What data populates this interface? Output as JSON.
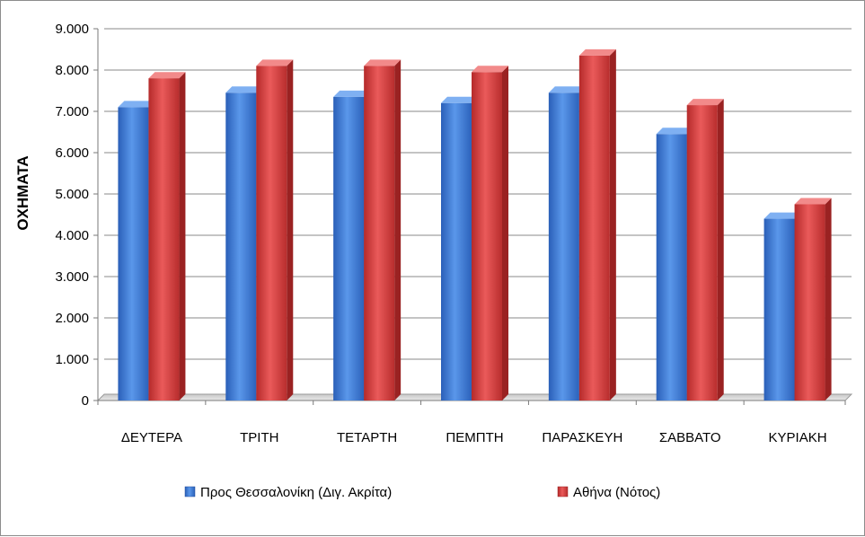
{
  "chart_data": {
    "type": "bar",
    "title": "",
    "xlabel": "",
    "ylabel": "ΟΧΗΜΑΤΑ",
    "ylim": [
      0,
      9000
    ],
    "yticks": [
      0,
      1000,
      2000,
      3000,
      4000,
      5000,
      6000,
      7000,
      8000,
      9000
    ],
    "ytick_labels": [
      "0",
      "1.000",
      "2.000",
      "3.000",
      "4.000",
      "5.000",
      "6.000",
      "7.000",
      "8.000",
      "9.000"
    ],
    "grid": true,
    "legend_position": "bottom",
    "categories": [
      "ΔΕΥΤΕΡΑ",
      "ΤΡΙΤΗ",
      "ΤΕΤΑΡΤΗ",
      "ΠΕΜΠΤΗ",
      "ΠΑΡΑΣΚΕΥΗ",
      "ΣΑΒΒΑΤΟ",
      "ΚΥΡΙΑΚΗ"
    ],
    "series": [
      {
        "name": "Προς Θεσσαλονίκη (Διγ. Ακρίτα)",
        "color": "#3c78d8",
        "values": [
          7100,
          7450,
          7350,
          7200,
          7450,
          6450,
          4400
        ]
      },
      {
        "name": "Αθήνα (Νότος)",
        "color": "#d94040",
        "values": [
          7800,
          8100,
          8100,
          7950,
          8350,
          7150,
          4750
        ]
      }
    ]
  }
}
